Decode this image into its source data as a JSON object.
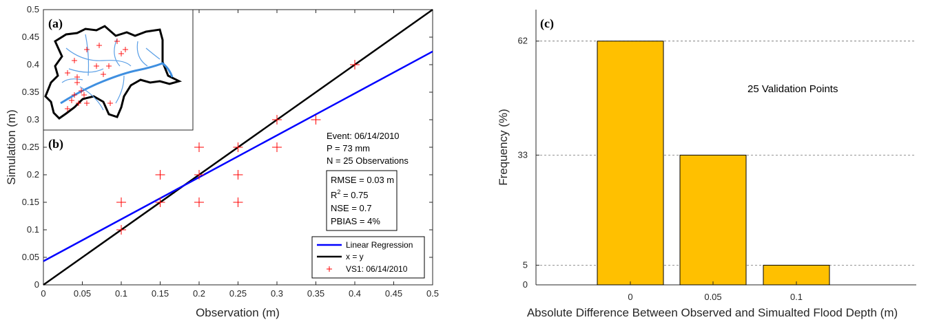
{
  "chart_data": [
    {
      "type": "scatter",
      "panel_a_label": "(a)",
      "panel_b_label": "(b)",
      "xlabel": "Observation (m)",
      "ylabel": "Simulation (m)",
      "xlim": [
        0,
        0.5
      ],
      "ylim": [
        0,
        0.5
      ],
      "xticks": [
        "0",
        "0.05",
        "0.1",
        "0.15",
        "0.2",
        "0.25",
        "0.3",
        "0.35",
        "0.4",
        "0.45",
        "0.5"
      ],
      "yticks": [
        "0",
        "0.05",
        "0.1",
        "0.15",
        "0.2",
        "0.25",
        "0.3",
        "0.35",
        "0.4",
        "0.45",
        "0.5"
      ],
      "points": [
        [
          0.1,
          0.15
        ],
        [
          0.1,
          0.1
        ],
        [
          0.15,
          0.2
        ],
        [
          0.15,
          0.15
        ],
        [
          0.2,
          0.25
        ],
        [
          0.2,
          0.2
        ],
        [
          0.2,
          0.15
        ],
        [
          0.25,
          0.25
        ],
        [
          0.25,
          0.2
        ],
        [
          0.25,
          0.15
        ],
        [
          0.3,
          0.3
        ],
        [
          0.3,
          0.25
        ],
        [
          0.35,
          0.3
        ],
        [
          0.4,
          0.4
        ]
      ],
      "regression": {
        "intercept": 0.043,
        "slope": 0.762
      },
      "annotations": {
        "event": "Event: 06/14/2010",
        "precip": "P = 73 mm",
        "n_obs": "N = 25 Observations",
        "rmse": "RMSE = 0.03 m",
        "r2_prefix": "R",
        "r2_sup": "2",
        "r2_suffix": " = 0.75",
        "nse": "NSE = 0.7",
        "pbias": "PBIAS = 4%"
      },
      "legend": {
        "position": "bottom-right",
        "entries": [
          "Linear Regression",
          "x = y",
          "VS1: 06/14/2010"
        ]
      },
      "colors": {
        "regression": "#0000ff",
        "identity": "#000000",
        "points": "#ff0000"
      },
      "grid": false
    },
    {
      "type": "bar",
      "panel_label": "(c)",
      "categories": [
        "0",
        "0.05",
        "0.1"
      ],
      "values": [
        62,
        33,
        5
      ],
      "xlabel": "Absolute Difference Between Observed and Simualted Flood Depth (m)",
      "ylabel": "Frequency (%)",
      "yticks": [
        0,
        5,
        33,
        62
      ],
      "ylim": [
        0,
        70
      ],
      "annotation": "25 Validation Points",
      "bar_color": "#ffc000",
      "grid": "dashed at ticks"
    }
  ]
}
